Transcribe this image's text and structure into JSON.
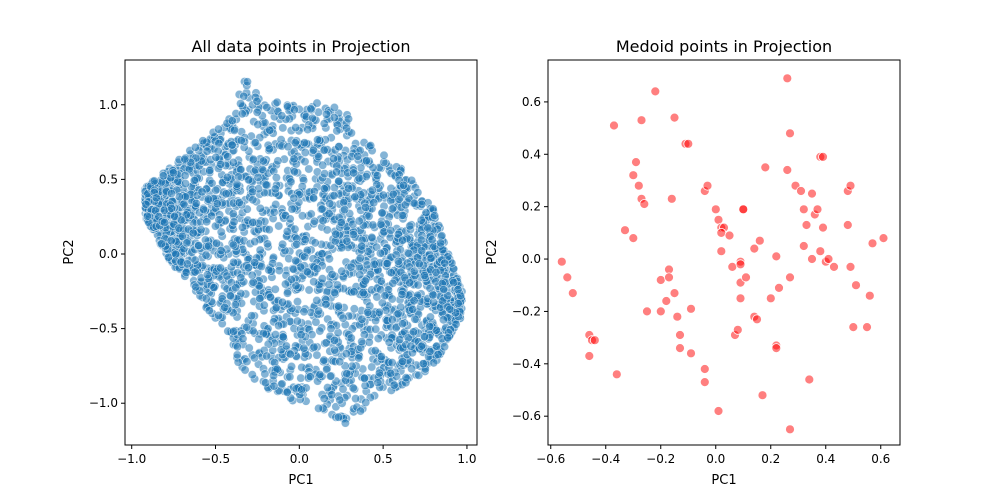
{
  "chart_data": [
    {
      "type": "scatter",
      "title": "All data points in Projection",
      "xlabel": "PC1",
      "ylabel": "PC2",
      "xlim": [
        -1.04,
        1.06
      ],
      "ylim": [
        -1.28,
        1.3
      ],
      "xticks": [
        -1.0,
        -0.5,
        0.0,
        0.5,
        1.0
      ],
      "yticks": [
        -1.0,
        -0.5,
        0.0,
        0.5,
        1.0
      ],
      "xtick_labels": [
        "−1.0",
        "−0.5",
        "0.0",
        "0.5",
        "1.0"
      ],
      "ytick_labels": [
        "−1.0",
        "−0.5",
        "0.0",
        "0.5",
        "1.0"
      ],
      "grid": false,
      "color": "#1f77b4",
      "edge_color": "#ffffff",
      "description_of_density": "dense band of overlapping points",
      "series": [
        {
          "values_note": "dense cloud; representative band outlines (top, bottom) per x",
          "x": [
            -0.92,
            -0.8,
            -0.6,
            -0.4,
            -0.33,
            -0.2,
            0.0,
            0.15,
            0.3,
            0.45,
            0.6,
            0.8,
            0.97
          ],
          "top": [
            0.45,
            0.55,
            0.75,
            0.92,
            1.18,
            1.05,
            1.0,
            1.02,
            0.95,
            0.7,
            0.6,
            0.3,
            -0.25
          ],
          "bottom": [
            0.25,
            0.0,
            -0.3,
            -0.6,
            -0.85,
            -0.92,
            -1.0,
            -1.05,
            -1.15,
            -0.95,
            -0.9,
            -0.75,
            -0.42
          ]
        }
      ]
    },
    {
      "type": "scatter",
      "title": "Medoid points in Projection",
      "xlabel": "PC1",
      "ylabel": "PC2",
      "xlim": [
        -0.61,
        0.67
      ],
      "ylim": [
        -0.71,
        0.76
      ],
      "xticks": [
        -0.6,
        -0.4,
        -0.2,
        0.0,
        0.2,
        0.4,
        0.6
      ],
      "yticks": [
        -0.6,
        -0.4,
        -0.2,
        0.0,
        0.2,
        0.4,
        0.6
      ],
      "xtick_labels": [
        "−0.6",
        "−0.4",
        "−0.2",
        "0.0",
        "0.2",
        "0.4",
        "0.6"
      ],
      "ytick_labels": [
        "−0.6",
        "−0.4",
        "−0.2",
        "0.0",
        "0.2",
        "0.4",
        "0.6"
      ],
      "grid": false,
      "color": "#ff0000",
      "edge_color": "#ffffff",
      "series": [
        {
          "points": [
            [
              -0.56,
              -0.01
            ],
            [
              -0.54,
              -0.07
            ],
            [
              -0.52,
              -0.13
            ],
            [
              -0.46,
              -0.29
            ],
            [
              -0.45,
              -0.31
            ],
            [
              -0.44,
              -0.31
            ],
            [
              -0.46,
              -0.37
            ],
            [
              -0.37,
              0.51
            ],
            [
              -0.36,
              -0.44
            ],
            [
              -0.33,
              0.11
            ],
            [
              -0.3,
              0.32
            ],
            [
              -0.29,
              0.37
            ],
            [
              -0.28,
              0.28
            ],
            [
              -0.3,
              0.08
            ],
            [
              -0.27,
              0.53
            ],
            [
              -0.27,
              0.23
            ],
            [
              -0.26,
              0.21
            ],
            [
              -0.22,
              0.64
            ],
            [
              -0.25,
              -0.2
            ],
            [
              -0.2,
              -0.08
            ],
            [
              -0.2,
              -0.2
            ],
            [
              -0.18,
              -0.16
            ],
            [
              -0.17,
              -0.04
            ],
            [
              -0.17,
              -0.07
            ],
            [
              -0.16,
              0.23
            ],
            [
              -0.15,
              0.54
            ],
            [
              -0.15,
              -0.13
            ],
            [
              -0.14,
              -0.22
            ],
            [
              -0.13,
              -0.29
            ],
            [
              -0.13,
              -0.34
            ],
            [
              -0.11,
              0.44
            ],
            [
              -0.1,
              0.44
            ],
            [
              -0.09,
              -0.19
            ],
            [
              -0.09,
              -0.36
            ],
            [
              -0.04,
              0.26
            ],
            [
              -0.03,
              0.28
            ],
            [
              -0.04,
              -0.42
            ],
            [
              -0.04,
              -0.47
            ],
            [
              0.0,
              0.19
            ],
            [
              0.01,
              0.15
            ],
            [
              0.02,
              0.12
            ],
            [
              0.03,
              0.12
            ],
            [
              0.02,
              0.03
            ],
            [
              0.02,
              0.1
            ],
            [
              0.01,
              -0.58
            ],
            [
              0.05,
              0.09
            ],
            [
              0.06,
              -0.03
            ],
            [
              0.07,
              -0.29
            ],
            [
              0.08,
              -0.27
            ],
            [
              0.09,
              -0.01
            ],
            [
              0.09,
              -0.02
            ],
            [
              0.09,
              -0.09
            ],
            [
              0.09,
              -0.15
            ],
            [
              0.1,
              0.19
            ],
            [
              0.1,
              0.19
            ],
            [
              0.11,
              -0.07
            ],
            [
              0.14,
              0.04
            ],
            [
              0.14,
              -0.22
            ],
            [
              0.15,
              -0.23
            ],
            [
              0.16,
              0.07
            ],
            [
              0.17,
              -0.52
            ],
            [
              0.18,
              0.35
            ],
            [
              0.2,
              -0.15
            ],
            [
              0.22,
              0.01
            ],
            [
              0.22,
              -0.33
            ],
            [
              0.22,
              -0.34
            ],
            [
              0.23,
              -0.11
            ],
            [
              0.26,
              0.69
            ],
            [
              0.27,
              0.48
            ],
            [
              0.26,
              0.34
            ],
            [
              0.27,
              -0.07
            ],
            [
              0.27,
              -0.65
            ],
            [
              0.29,
              0.28
            ],
            [
              0.31,
              0.26
            ],
            [
              0.32,
              0.19
            ],
            [
              0.32,
              0.05
            ],
            [
              0.33,
              0.13
            ],
            [
              0.34,
              -0.46
            ],
            [
              0.35,
              0.0
            ],
            [
              0.35,
              0.25
            ],
            [
              0.36,
              0.17
            ],
            [
              0.37,
              0.19
            ],
            [
              0.38,
              0.03
            ],
            [
              0.38,
              0.39
            ],
            [
              0.39,
              0.39
            ],
            [
              0.39,
              0.12
            ],
            [
              0.4,
              -0.01
            ],
            [
              0.41,
              0.0
            ],
            [
              0.43,
              -0.03
            ],
            [
              0.48,
              0.26
            ],
            [
              0.49,
              0.28
            ],
            [
              0.48,
              0.13
            ],
            [
              0.49,
              -0.03
            ],
            [
              0.5,
              -0.26
            ],
            [
              0.51,
              -0.1
            ],
            [
              0.55,
              -0.26
            ],
            [
              0.56,
              -0.14
            ],
            [
              0.57,
              0.06
            ],
            [
              0.61,
              0.08
            ]
          ]
        }
      ]
    }
  ]
}
